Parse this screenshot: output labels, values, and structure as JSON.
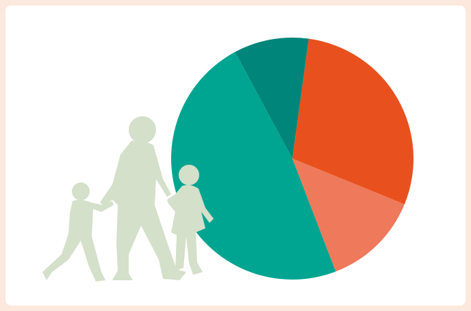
{
  "chart_data": {
    "type": "pie",
    "values": [
      29,
      13,
      48,
      10
    ],
    "colors": [
      "#e8511e",
      "#ef795b",
      "#00a591",
      "#00857a"
    ]
  }
}
